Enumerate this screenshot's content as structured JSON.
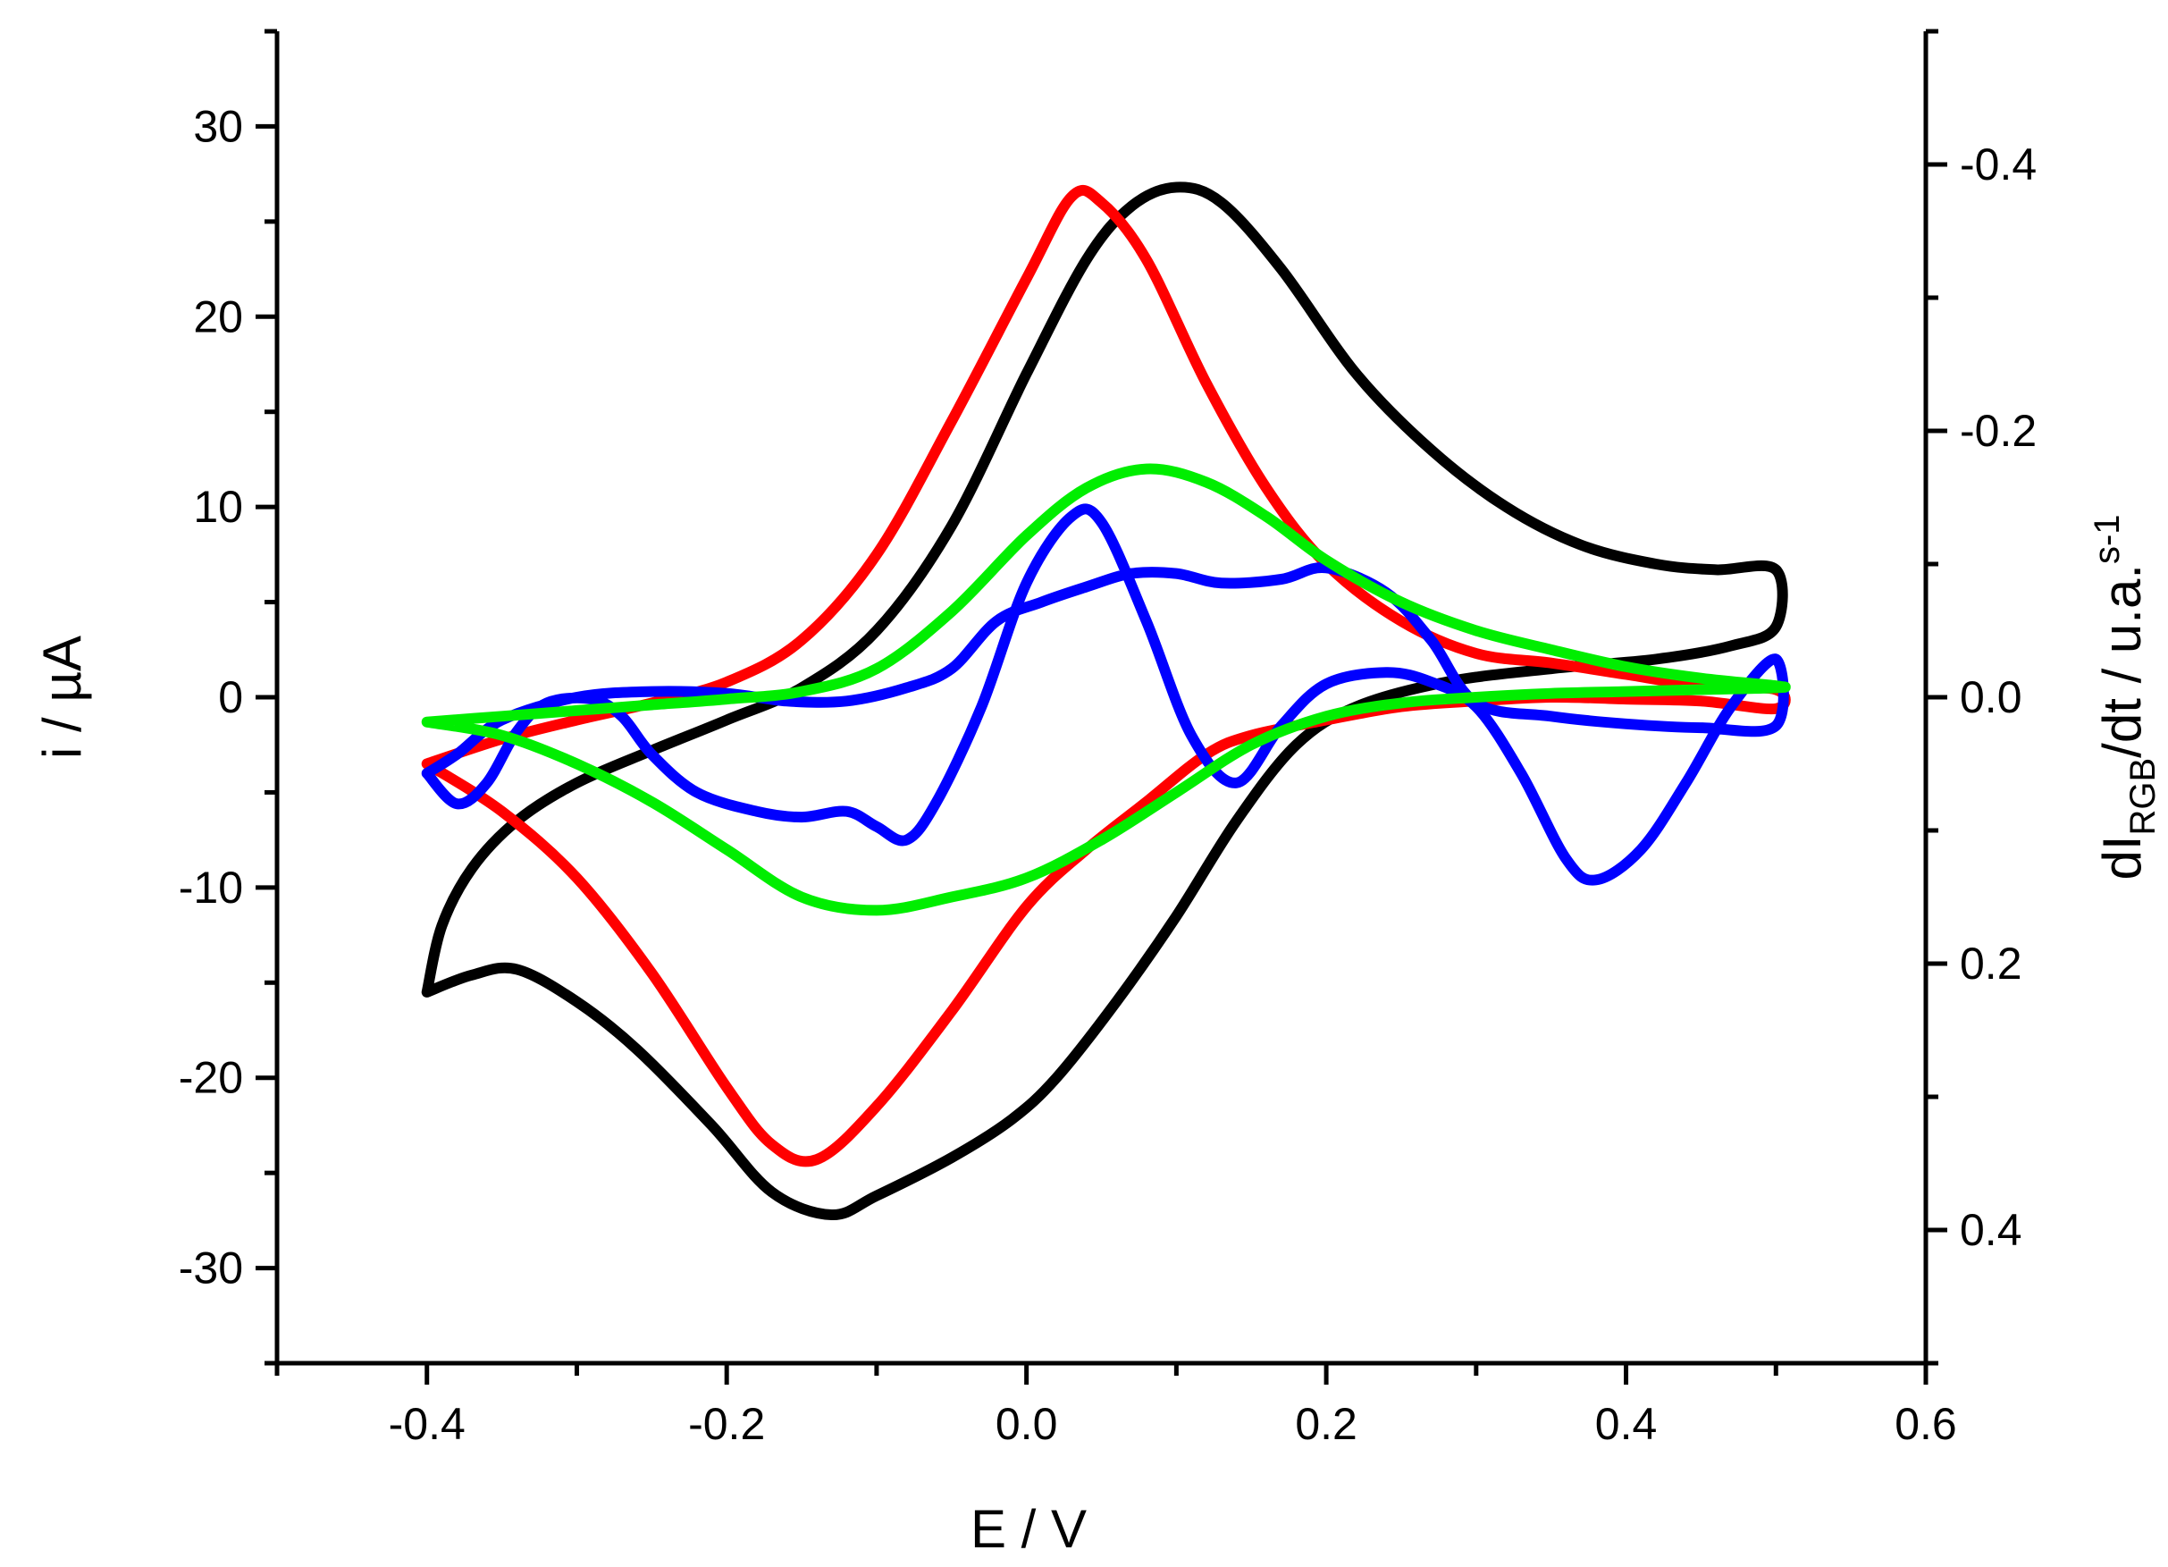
{
  "chart_data": {
    "type": "line",
    "title": "",
    "xlabel": "E / V",
    "ylabel_left": "i / µA",
    "ylabel_right": {
      "main": "dI",
      "sub": "RGB",
      "rest": "/dt / u.a.",
      "sup": "s-1"
    },
    "xlim": [
      -0.5,
      0.6
    ],
    "ylim_left": [
      -35,
      35
    ],
    "ylim_right_top_to_bottom": [
      -0.5,
      0.5
    ],
    "x_ticks": [
      {
        "value": -0.4,
        "label": "-0.4"
      },
      {
        "value": -0.2,
        "label": "-0.2"
      },
      {
        "value": 0.0,
        "label": "0.0"
      },
      {
        "value": 0.2,
        "label": "0.2"
      },
      {
        "value": 0.4,
        "label": "0.4"
      },
      {
        "value": 0.6,
        "label": "0.6"
      }
    ],
    "y_left_ticks": [
      {
        "value": 30,
        "label": "30"
      },
      {
        "value": 20,
        "label": "20"
      },
      {
        "value": 10,
        "label": "10"
      },
      {
        "value": 0,
        "label": "0"
      },
      {
        "value": -10,
        "label": "-10"
      },
      {
        "value": -20,
        "label": "-20"
      },
      {
        "value": -30,
        "label": "-30"
      }
    ],
    "y_right_ticks": [
      {
        "value": -0.4,
        "label": "-0.4"
      },
      {
        "value": -0.2,
        "label": "-0.2"
      },
      {
        "value": 0.0,
        "label": "0.0"
      },
      {
        "value": 0.2,
        "label": "0.2"
      },
      {
        "value": 0.4,
        "label": "0.4"
      }
    ],
    "grid": false,
    "series": [
      {
        "name": "black",
        "color": "#000000",
        "axis": "left",
        "points": [
          [
            -0.4,
            -15.5
          ],
          [
            -0.39,
            -12.0
          ],
          [
            -0.37,
            -9.0
          ],
          [
            -0.34,
            -6.5
          ],
          [
            -0.3,
            -4.5
          ],
          [
            -0.25,
            -2.8
          ],
          [
            -0.2,
            -1.2
          ],
          [
            -0.15,
            0.5
          ],
          [
            -0.1,
            3.5
          ],
          [
            -0.05,
            9.0
          ],
          [
            0.0,
            17.0
          ],
          [
            0.04,
            23.0
          ],
          [
            0.07,
            25.8
          ],
          [
            0.1,
            26.8
          ],
          [
            0.13,
            26.0
          ],
          [
            0.17,
            22.5
          ],
          [
            0.22,
            17.0
          ],
          [
            0.27,
            13.0
          ],
          [
            0.32,
            10.0
          ],
          [
            0.37,
            8.0
          ],
          [
            0.42,
            7.0
          ],
          [
            0.46,
            6.7
          ],
          [
            0.5,
            6.7
          ],
          [
            0.5,
            3.7
          ],
          [
            0.47,
            2.7
          ],
          [
            0.42,
            2.0
          ],
          [
            0.35,
            1.5
          ],
          [
            0.28,
            0.8
          ],
          [
            0.22,
            -0.5
          ],
          [
            0.18,
            -2.5
          ],
          [
            0.14,
            -6.5
          ],
          [
            0.1,
            -11.5
          ],
          [
            0.06,
            -16.0
          ],
          [
            0.02,
            -20.0
          ],
          [
            -0.01,
            -22.2
          ],
          [
            -0.05,
            -24.2
          ],
          [
            -0.1,
            -26.2
          ],
          [
            -0.13,
            -27.2
          ],
          [
            -0.17,
            -26.0
          ],
          [
            -0.21,
            -22.5
          ],
          [
            -0.26,
            -18.5
          ],
          [
            -0.3,
            -16.0
          ],
          [
            -0.34,
            -14.3
          ],
          [
            -0.37,
            -14.6
          ],
          [
            -0.4,
            -15.5
          ]
        ]
      },
      {
        "name": "red",
        "color": "#ff0000",
        "axis": "left",
        "points": [
          [
            -0.4,
            -3.5
          ],
          [
            -0.35,
            -2.2
          ],
          [
            -0.3,
            -1.2
          ],
          [
            -0.25,
            -0.3
          ],
          [
            -0.2,
            0.8
          ],
          [
            -0.15,
            3.0
          ],
          [
            -0.1,
            7.5
          ],
          [
            -0.05,
            14.5
          ],
          [
            0.0,
            22.0
          ],
          [
            0.03,
            26.3
          ],
          [
            0.05,
            26.0
          ],
          [
            0.08,
            23.0
          ],
          [
            0.12,
            16.5
          ],
          [
            0.16,
            11.0
          ],
          [
            0.2,
            7.0
          ],
          [
            0.25,
            4.0
          ],
          [
            0.3,
            2.3
          ],
          [
            0.35,
            1.8
          ],
          [
            0.4,
            1.2
          ],
          [
            0.45,
            0.6
          ],
          [
            0.5,
            0.4
          ],
          [
            0.5,
            -0.6
          ],
          [
            0.45,
            -0.2
          ],
          [
            0.4,
            -0.1
          ],
          [
            0.35,
            0.0
          ],
          [
            0.3,
            -0.2
          ],
          [
            0.25,
            -0.5
          ],
          [
            0.2,
            -1.2
          ],
          [
            0.15,
            -2.0
          ],
          [
            0.12,
            -3.0
          ],
          [
            0.08,
            -5.5
          ],
          [
            0.04,
            -8.0
          ],
          [
            0.0,
            -11.0
          ],
          [
            -0.05,
            -16.5
          ],
          [
            -0.1,
            -21.5
          ],
          [
            -0.14,
            -24.3
          ],
          [
            -0.17,
            -23.5
          ],
          [
            -0.2,
            -20.5
          ],
          [
            -0.25,
            -14.5
          ],
          [
            -0.3,
            -9.5
          ],
          [
            -0.35,
            -6.0
          ],
          [
            -0.4,
            -3.5
          ]
        ]
      },
      {
        "name": "blue",
        "color": "#0000ff",
        "axis": "left",
        "points": [
          [
            -0.4,
            -4.0
          ],
          [
            -0.38,
            -5.6
          ],
          [
            -0.36,
            -4.5
          ],
          [
            -0.34,
            -1.8
          ],
          [
            -0.32,
            -0.3
          ],
          [
            -0.29,
            -0.1
          ],
          [
            -0.27,
            -1.0
          ],
          [
            -0.25,
            -3.0
          ],
          [
            -0.22,
            -5.0
          ],
          [
            -0.18,
            -6.0
          ],
          [
            -0.15,
            -6.3
          ],
          [
            -0.12,
            -6.0
          ],
          [
            -0.1,
            -6.8
          ],
          [
            -0.08,
            -7.5
          ],
          [
            -0.06,
            -5.5
          ],
          [
            -0.03,
            -0.5
          ],
          [
            0.0,
            6.0
          ],
          [
            0.03,
            9.5
          ],
          [
            0.05,
            9.2
          ],
          [
            0.08,
            4.0
          ],
          [
            0.11,
            -2.0
          ],
          [
            0.14,
            -4.5
          ],
          [
            0.17,
            -1.5
          ],
          [
            0.2,
            0.7
          ],
          [
            0.24,
            1.3
          ],
          [
            0.27,
            0.8
          ],
          [
            0.3,
            -0.5
          ],
          [
            0.33,
            -4.0
          ],
          [
            0.36,
            -8.5
          ],
          [
            0.38,
            -9.6
          ],
          [
            0.41,
            -8.0
          ],
          [
            0.44,
            -4.5
          ],
          [
            0.47,
            -0.5
          ],
          [
            0.5,
            2.0
          ],
          [
            0.5,
            -1.5
          ],
          [
            0.45,
            -1.6
          ],
          [
            0.4,
            -1.4
          ],
          [
            0.35,
            -1.0
          ],
          [
            0.3,
            -0.3
          ],
          [
            0.27,
            3.0
          ],
          [
            0.24,
            5.5
          ],
          [
            0.2,
            6.8
          ],
          [
            0.17,
            6.2
          ],
          [
            0.13,
            6.0
          ],
          [
            0.1,
            6.5
          ],
          [
            0.07,
            6.5
          ],
          [
            0.04,
            5.8
          ],
          [
            0.01,
            5.0
          ],
          [
            -0.02,
            4.0
          ],
          [
            -0.05,
            1.5
          ],
          [
            -0.08,
            0.5
          ],
          [
            -0.12,
            -0.2
          ],
          [
            -0.16,
            -0.2
          ],
          [
            -0.2,
            0.2
          ],
          [
            -0.25,
            0.3
          ],
          [
            -0.3,
            0.0
          ],
          [
            -0.35,
            -1.2
          ],
          [
            -0.38,
            -3.0
          ],
          [
            -0.4,
            -4.0
          ]
        ]
      },
      {
        "name": "green",
        "color": "#00ee00",
        "axis": "left",
        "points": [
          [
            -0.4,
            -1.3
          ],
          [
            -0.35,
            -1.0
          ],
          [
            -0.3,
            -0.7
          ],
          [
            -0.25,
            -0.4
          ],
          [
            -0.2,
            -0.1
          ],
          [
            -0.15,
            0.3
          ],
          [
            -0.1,
            1.5
          ],
          [
            -0.05,
            4.5
          ],
          [
            0.0,
            8.5
          ],
          [
            0.04,
            11.0
          ],
          [
            0.08,
            12.0
          ],
          [
            0.12,
            11.3
          ],
          [
            0.16,
            9.5
          ],
          [
            0.2,
            7.2
          ],
          [
            0.25,
            5.0
          ],
          [
            0.3,
            3.5
          ],
          [
            0.35,
            2.5
          ],
          [
            0.4,
            1.6
          ],
          [
            0.45,
            1.0
          ],
          [
            0.5,
            0.6
          ],
          [
            0.5,
            0.5
          ],
          [
            0.45,
            0.4
          ],
          [
            0.4,
            0.3
          ],
          [
            0.35,
            0.2
          ],
          [
            0.3,
            0.0
          ],
          [
            0.25,
            -0.3
          ],
          [
            0.2,
            -1.0
          ],
          [
            0.15,
            -2.5
          ],
          [
            0.1,
            -5.0
          ],
          [
            0.05,
            -7.5
          ],
          [
            0.0,
            -9.5
          ],
          [
            -0.05,
            -10.5
          ],
          [
            -0.1,
            -11.2
          ],
          [
            -0.15,
            -10.5
          ],
          [
            -0.2,
            -8.0
          ],
          [
            -0.25,
            -5.5
          ],
          [
            -0.3,
            -3.5
          ],
          [
            -0.35,
            -2.0
          ],
          [
            -0.4,
            -1.3
          ]
        ]
      }
    ]
  }
}
